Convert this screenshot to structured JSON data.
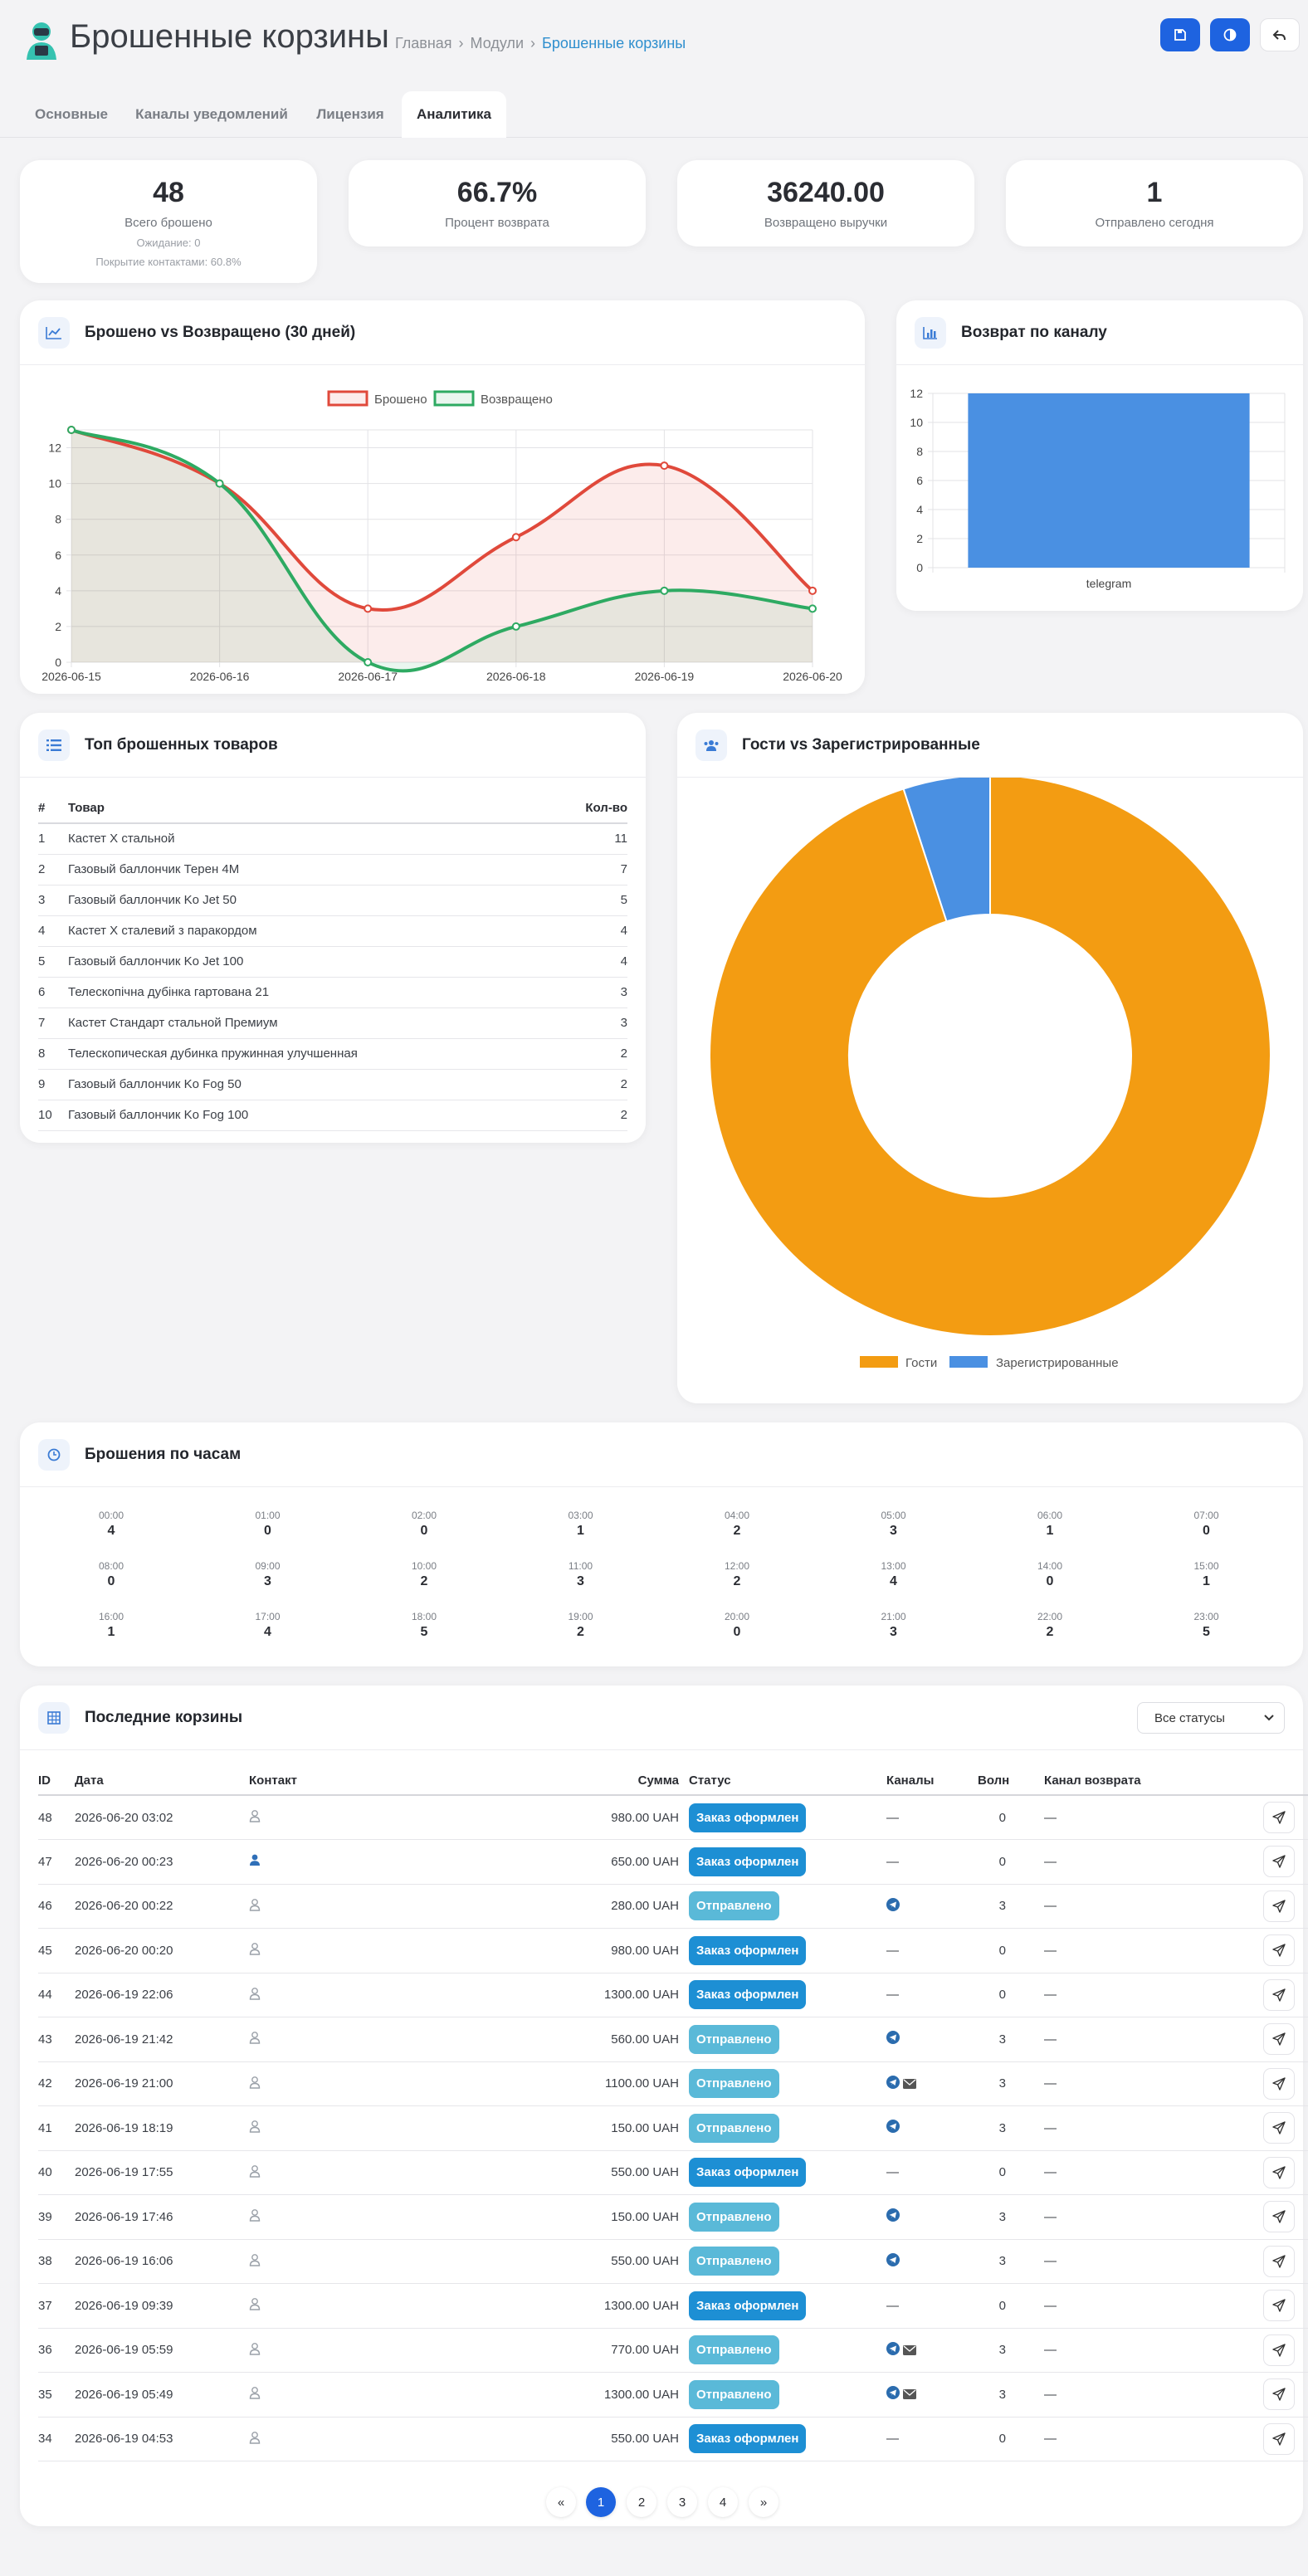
{
  "header": {
    "title": "Брошенные корзины",
    "crumbs": [
      "Главная",
      "Модули",
      "Брошенные корзины"
    ]
  },
  "tabs": [
    "Основные",
    "Каналы уведомлений",
    "Лицензия",
    "Аналитика"
  ],
  "stats": [
    {
      "value": "48",
      "label": "Всего брошено",
      "sub1": "Ожидание: 0",
      "sub2": "Покрытие контактами: 60.8%"
    },
    {
      "value": "66.7%",
      "label": "Процент возврата"
    },
    {
      "value": "36240.00",
      "label": "Возвращено выручки"
    },
    {
      "value": "1",
      "label": "Отправлено сегодня"
    }
  ],
  "line_chart": {
    "title": "Брошено vs Возвращено (30 дней)",
    "legend": [
      "Брошено",
      "Возвращено"
    ]
  },
  "bar_chart": {
    "title": "Возврат по каналу"
  },
  "pie_chart": {
    "title": "Гости vs Зарегистрированные",
    "legend": [
      "Гости",
      "Зарегистрированные"
    ]
  },
  "chart_data": [
    {
      "type": "line",
      "title": "Брошено vs Возвращено (30 дней)",
      "x": [
        "2026-06-15",
        "2026-06-16",
        "2026-06-17",
        "2026-06-18",
        "2026-06-19",
        "2026-06-20"
      ],
      "ylim": [
        0,
        12
      ],
      "yticks": [
        0,
        2,
        4,
        6,
        8,
        10,
        12
      ],
      "series": [
        {
          "name": "Брошено",
          "values": [
            13,
            10,
            3,
            7,
            11,
            4
          ],
          "color": "#e0493b"
        },
        {
          "name": "Возвращено",
          "values": [
            13,
            10,
            0,
            2,
            4,
            3
          ],
          "color": "#2eaa62"
        }
      ]
    },
    {
      "type": "bar",
      "title": "Возврат по каналу",
      "categories": [
        "telegram"
      ],
      "values": [
        12
      ],
      "ylim": [
        0,
        12
      ],
      "yticks": [
        0,
        2,
        4,
        6,
        8,
        10,
        12
      ],
      "color": "#4a90e2"
    },
    {
      "type": "pie",
      "title": "Гости vs Зарегистрированные",
      "categories": [
        "Гости",
        "Зарегистрированные"
      ],
      "values": [
        95,
        5
      ],
      "colors": [
        "#f39c12",
        "#4a90e2"
      ]
    }
  ],
  "top_products": {
    "title": "Топ брошенных товаров",
    "columns": [
      "#",
      "Товар",
      "Кол-во"
    ],
    "rows": [
      [
        "1",
        "Кастет Х стальной",
        "11"
      ],
      [
        "2",
        "Газовый баллончик Терен 4М",
        "7"
      ],
      [
        "3",
        "Газовый баллончик Ko Jet 50",
        "5"
      ],
      [
        "4",
        "Кастет Х сталевий з паракордом",
        "4"
      ],
      [
        "5",
        "Газовый баллончик Ko Jet 100",
        "4"
      ],
      [
        "6",
        "Телескопічна дубінка гартована 21",
        "3"
      ],
      [
        "7",
        "Кастет Стандарт стальной Премиум",
        "3"
      ],
      [
        "8",
        "Телескопическая дубинка пружинная улучшенная",
        "2"
      ],
      [
        "9",
        "Газовый баллончик Ko Fog 50",
        "2"
      ],
      [
        "10",
        "Газовый баллончик Ko Fog 100",
        "2"
      ]
    ]
  },
  "hours": {
    "title": "Брошения по часам",
    "items": [
      [
        "00:00",
        "4"
      ],
      [
        "01:00",
        "0"
      ],
      [
        "02:00",
        "0"
      ],
      [
        "03:00",
        "1"
      ],
      [
        "04:00",
        "2"
      ],
      [
        "05:00",
        "3"
      ],
      [
        "06:00",
        "1"
      ],
      [
        "07:00",
        "0"
      ],
      [
        "08:00",
        "0"
      ],
      [
        "09:00",
        "3"
      ],
      [
        "10:00",
        "2"
      ],
      [
        "11:00",
        "3"
      ],
      [
        "12:00",
        "2"
      ],
      [
        "13:00",
        "4"
      ],
      [
        "14:00",
        "0"
      ],
      [
        "15:00",
        "1"
      ],
      [
        "16:00",
        "1"
      ],
      [
        "17:00",
        "4"
      ],
      [
        "18:00",
        "5"
      ],
      [
        "19:00",
        "2"
      ],
      [
        "20:00",
        "0"
      ],
      [
        "21:00",
        "3"
      ],
      [
        "22:00",
        "2"
      ],
      [
        "23:00",
        "5"
      ]
    ]
  },
  "recent": {
    "title": "Последние корзины",
    "filter": "Все статусы",
    "columns": [
      "ID",
      "Дата",
      "Контакт",
      "Сумма",
      "Статус",
      "Каналы",
      "Волн",
      "Канал возврата"
    ],
    "rows": [
      {
        "id": "48",
        "date": "2026-06-20 03:02",
        "contact": "anon",
        "sum": "980.00 UAH",
        "status": "Заказ оформлен",
        "st": "done",
        "channels": "—",
        "waves": "0",
        "ret": "—"
      },
      {
        "id": "47",
        "date": "2026-06-20 00:23",
        "contact": "user",
        "sum": "650.00 UAH",
        "status": "Заказ оформлен",
        "st": "done",
        "channels": "—",
        "waves": "0",
        "ret": "—"
      },
      {
        "id": "46",
        "date": "2026-06-20 00:22",
        "contact": "anon",
        "sum": "280.00 UAH",
        "status": "Отправлено",
        "st": "sent",
        "channels": "tg",
        "waves": "3",
        "ret": "—"
      },
      {
        "id": "45",
        "date": "2026-06-20 00:20",
        "contact": "anon",
        "sum": "980.00 UAH",
        "status": "Заказ оформлен",
        "st": "done",
        "channels": "—",
        "waves": "0",
        "ret": "—"
      },
      {
        "id": "44",
        "date": "2026-06-19 22:06",
        "contact": "anon",
        "sum": "1300.00 UAH",
        "status": "Заказ оформлен",
        "st": "done",
        "channels": "—",
        "waves": "0",
        "ret": "—"
      },
      {
        "id": "43",
        "date": "2026-06-19 21:42",
        "contact": "anon",
        "sum": "560.00 UAH",
        "status": "Отправлено",
        "st": "sent",
        "channels": "tg",
        "waves": "3",
        "ret": "—"
      },
      {
        "id": "42",
        "date": "2026-06-19 21:00",
        "contact": "anon",
        "sum": "1100.00 UAH",
        "status": "Отправлено",
        "st": "sent",
        "channels": "tgmail",
        "waves": "3",
        "ret": "—"
      },
      {
        "id": "41",
        "date": "2026-06-19 18:19",
        "contact": "anon",
        "sum": "150.00 UAH",
        "status": "Отправлено",
        "st": "sent",
        "channels": "tg",
        "waves": "3",
        "ret": "—"
      },
      {
        "id": "40",
        "date": "2026-06-19 17:55",
        "contact": "anon",
        "sum": "550.00 UAH",
        "status": "Заказ оформлен",
        "st": "done",
        "channels": "—",
        "waves": "0",
        "ret": "—"
      },
      {
        "id": "39",
        "date": "2026-06-19 17:46",
        "contact": "anon",
        "sum": "150.00 UAH",
        "status": "Отправлено",
        "st": "sent",
        "channels": "tg",
        "waves": "3",
        "ret": "—"
      },
      {
        "id": "38",
        "date": "2026-06-19 16:06",
        "contact": "anon",
        "sum": "550.00 UAH",
        "status": "Отправлено",
        "st": "sent",
        "channels": "tg",
        "waves": "3",
        "ret": "—"
      },
      {
        "id": "37",
        "date": "2026-06-19 09:39",
        "contact": "anon",
        "sum": "1300.00 UAH",
        "status": "Заказ оформлен",
        "st": "done",
        "channels": "—",
        "waves": "0",
        "ret": "—"
      },
      {
        "id": "36",
        "date": "2026-06-19 05:59",
        "contact": "anon",
        "sum": "770.00 UAH",
        "status": "Отправлено",
        "st": "sent",
        "channels": "tgmail",
        "waves": "3",
        "ret": "—"
      },
      {
        "id": "35",
        "date": "2026-06-19 05:49",
        "contact": "anon",
        "sum": "1300.00 UAH",
        "status": "Отправлено",
        "st": "sent",
        "channels": "tgmail",
        "waves": "3",
        "ret": "—"
      },
      {
        "id": "34",
        "date": "2026-06-19 04:53",
        "contact": "anon",
        "sum": "550.00 UAH",
        "status": "Заказ оформлен",
        "st": "done",
        "channels": "—",
        "waves": "0",
        "ret": "—"
      }
    ]
  },
  "pagination": {
    "prev": "«",
    "pages": [
      "1",
      "2",
      "3",
      "4"
    ],
    "next": "»",
    "current": "1"
  },
  "colors": {
    "accent": "#1e63e0",
    "done": "#1d8fd4",
    "sent": "#5ab9d8",
    "line1": "#e0493b",
    "line2": "#2eaa62",
    "bar": "#4a90e2",
    "guests": "#f39c12"
  }
}
